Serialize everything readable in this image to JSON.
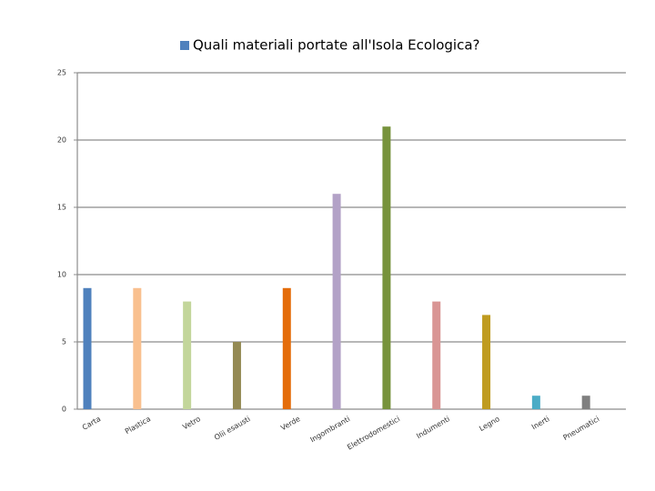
{
  "chart_data": {
    "type": "bar",
    "categories": [
      "Carta",
      "Plastica",
      "Vetro",
      "Olii esausti",
      "Verde",
      "Ingombranti",
      "Elettrodomestici",
      "Indumenti",
      "Legno",
      "Inerti",
      "Pneumatici"
    ],
    "series": [
      {
        "name": "Quali materiali portate all'Isola Ecologica?",
        "color": "#4f81bd",
        "values": [
          9,
          9,
          8,
          5,
          9,
          16,
          21,
          8,
          7,
          1,
          1
        ]
      }
    ],
    "bar_colors": [
      "#4f81bd",
      "#f9c08f",
      "#c3d69b",
      "#948a54",
      "#e46c0a",
      "#b3a2c7",
      "#77933c",
      "#d99594",
      "#bf9b1f",
      "#4bacc6",
      "#7f7f7f"
    ],
    "ylim": [
      0,
      25
    ],
    "yticks": [
      0,
      5,
      10,
      15,
      20,
      25
    ],
    "grid": true,
    "legend": "top"
  }
}
